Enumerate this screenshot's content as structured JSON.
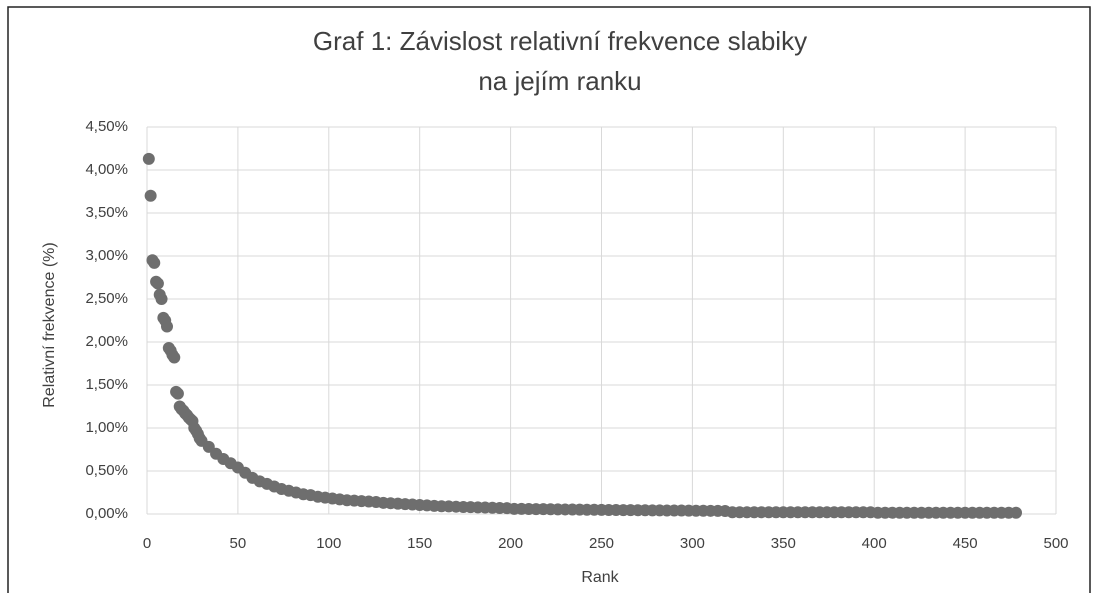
{
  "chart_data": {
    "type": "scatter",
    "title": [
      "Graf 1: Závislost relativní frekvence slabiky",
      "na jejím ranku"
    ],
    "x_label": "Rank",
    "y_label": "Relativní frekvence (%)",
    "color": "#6e6e6e",
    "grid": true,
    "xlim": [
      0,
      500
    ],
    "xticks": [
      0,
      50,
      100,
      150,
      200,
      250,
      300,
      350,
      400,
      450,
      500
    ],
    "ylim": [
      0,
      4.5
    ],
    "yticks": [
      {
        "value": 0,
        "label": "0,00%"
      },
      {
        "value": 0.5,
        "label": "0,50%"
      },
      {
        "value": 1,
        "label": "1,00%"
      },
      {
        "value": 1.5,
        "label": "1,50%"
      },
      {
        "value": 2,
        "label": "2,00%"
      },
      {
        "value": 2.5,
        "label": "2,50%"
      },
      {
        "value": 3,
        "label": "3,00%"
      },
      {
        "value": 3.5,
        "label": "3,50%"
      },
      {
        "value": 4,
        "label": "4,00%"
      },
      {
        "value": 4.5,
        "label": "4,50%"
      }
    ],
    "x": [
      1,
      2,
      3,
      4,
      5,
      6,
      7,
      8,
      9,
      10,
      11,
      12,
      13,
      14,
      15,
      16,
      17,
      18,
      19,
      20,
      21,
      22,
      23,
      24,
      25,
      26,
      27,
      28,
      29,
      30,
      34,
      38,
      42,
      46,
      50,
      54,
      58,
      62,
      66,
      70,
      74,
      78,
      82,
      86,
      90,
      94,
      98,
      102,
      106,
      110,
      114,
      118,
      122,
      126,
      130,
      134,
      138,
      142,
      146,
      150,
      154,
      158,
      162,
      166,
      170,
      174,
      178,
      182,
      186,
      190,
      194,
      198,
      202,
      206,
      210,
      214,
      218,
      222,
      226,
      230,
      234,
      238,
      242,
      246,
      250,
      254,
      258,
      262,
      266,
      270,
      274,
      278,
      282,
      286,
      290,
      294,
      298,
      302,
      306,
      310,
      314,
      318,
      322,
      326,
      330,
      334,
      338,
      342,
      346,
      350,
      354,
      358,
      362,
      366,
      370,
      374,
      378,
      382,
      386,
      390,
      394,
      398,
      402,
      406,
      410,
      414,
      418,
      422,
      426,
      430,
      434,
      438,
      442,
      446,
      450,
      454,
      458,
      462,
      466,
      470,
      474,
      478
    ],
    "y": [
      4.13,
      3.7,
      2.95,
      2.92,
      2.7,
      2.68,
      2.55,
      2.5,
      2.28,
      2.25,
      2.18,
      1.93,
      1.9,
      1.85,
      1.82,
      1.42,
      1.4,
      1.25,
      1.22,
      1.2,
      1.17,
      1.15,
      1.12,
      1.1,
      1.08,
      1.0,
      0.97,
      0.93,
      0.88,
      0.85,
      0.78,
      0.7,
      0.64,
      0.59,
      0.54,
      0.48,
      0.42,
      0.38,
      0.35,
      0.32,
      0.29,
      0.27,
      0.25,
      0.23,
      0.22,
      0.2,
      0.19,
      0.18,
      0.17,
      0.16,
      0.155,
      0.15,
      0.145,
      0.14,
      0.13,
      0.125,
      0.12,
      0.115,
      0.11,
      0.105,
      0.1,
      0.095,
      0.09,
      0.088,
      0.085,
      0.082,
      0.08,
      0.077,
      0.075,
      0.072,
      0.07,
      0.068,
      0.06,
      0.06,
      0.058,
      0.057,
      0.056,
      0.055,
      0.054,
      0.053,
      0.052,
      0.051,
      0.05,
      0.049,
      0.048,
      0.047,
      0.046,
      0.045,
      0.045,
      0.044,
      0.043,
      0.042,
      0.042,
      0.041,
      0.04,
      0.04,
      0.039,
      0.038,
      0.038,
      0.037,
      0.036,
      0.035,
      0.02,
      0.02,
      0.02,
      0.02,
      0.02,
      0.02,
      0.02,
      0.02,
      0.02,
      0.02,
      0.02,
      0.02,
      0.02,
      0.02,
      0.02,
      0.02,
      0.02,
      0.02,
      0.02,
      0.02,
      0.015,
      0.015,
      0.015,
      0.015,
      0.015,
      0.015,
      0.015,
      0.015,
      0.015,
      0.015,
      0.015,
      0.015,
      0.015,
      0.015,
      0.015,
      0.015,
      0.015,
      0.015,
      0.015,
      0.015
    ]
  }
}
